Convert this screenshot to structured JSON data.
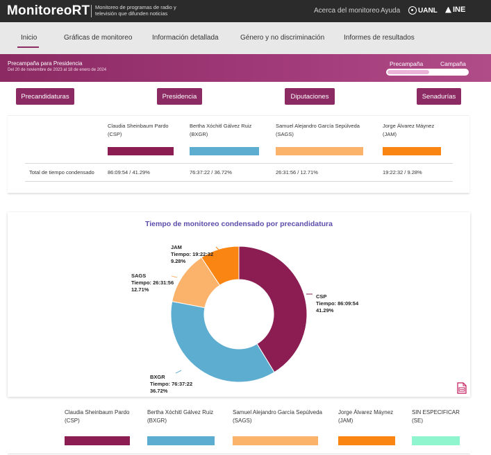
{
  "header": {
    "brand": "MonitoreoRT",
    "description": "Monitoreo de programas de radio y televisión que difunden noticias",
    "links": [
      "Acerca del monitoreo",
      "Ayuda"
    ],
    "logos": [
      "UANL",
      "INE"
    ]
  },
  "nav": {
    "tabs": [
      "Inicio",
      "Gráficas de monitoreo",
      "Información detallada",
      "Género y no discriminación",
      "Informes de resultados"
    ],
    "active": "Inicio"
  },
  "banner": {
    "title": "Precampaña para Presidencia",
    "dates": "Del 20 de noviembre de 2023 al 18 de enero de 2024",
    "toggle_left": "Precampaña",
    "toggle_right": "Campaña",
    "selected": "Precampaña"
  },
  "categories": [
    "Precandidaturas",
    "Presidencia",
    "Diputaciones",
    "Senadurías"
  ],
  "summary": {
    "row_label": "Total de tiempo condensado",
    "candidates": [
      {
        "name": "Claudia Sheinbaum Pardo",
        "party": "(CSP)",
        "value": "86:09:54 / 41.29%",
        "color": "#8b1d53"
      },
      {
        "name": "Bertha Xóchitl Gálvez Ruiz",
        "party": "(BXGR)",
        "value": "76:37:22 / 36.72%",
        "color": "#5dadd1"
      },
      {
        "name": "Samuel Alejandro García Sepúlveda",
        "party": "(SAGS)",
        "value": "26:31:56 / 12.71%",
        "color": "#fbb36b"
      },
      {
        "name": "Jorge Álvarez Máynez",
        "party": "(JAM)",
        "value": "19:22:32 / 9.28%",
        "color": "#fb8513"
      }
    ]
  },
  "chart_data": {
    "type": "pie",
    "title": "Tiempo de monitoreo condensado por precandidatura",
    "donut": true,
    "slices": [
      {
        "label": "CSP",
        "time_label": "Tiempo: 86:09:54",
        "pct_label": "41.29%",
        "value": 41.29,
        "color": "#8b1d53"
      },
      {
        "label": "BXGR",
        "time_label": "Tiempo: 76:37:22",
        "pct_label": "36.72%",
        "value": 36.72,
        "color": "#5dadd1"
      },
      {
        "label": "SAGS",
        "time_label": "Tiempo: 26:31:56",
        "pct_label": "12.71%",
        "value": 12.71,
        "color": "#fbb36b"
      },
      {
        "label": "JAM",
        "time_label": "Tiempo: 19:22:32",
        "pct_label": "9.28%",
        "value": 9.28,
        "color": "#fb8513"
      }
    ]
  },
  "legend": [
    {
      "name": "Claudia Sheinbaum Pardo",
      "party": "(CSP)",
      "color": "#8b1d53"
    },
    {
      "name": "Bertha Xóchitl Gálvez Ruiz",
      "party": "(BXGR)",
      "color": "#5dadd1"
    },
    {
      "name": "Samuel Alejandro García Sepúlveda",
      "party": "(SAGS)",
      "color": "#fbb36b"
    },
    {
      "name": "Jorge Álvarez Máynez",
      "party": "(JAM)",
      "color": "#fb8513"
    },
    {
      "name": "SIN ESPECIFICAR",
      "party": "(SE)",
      "color": "#8ff5cf"
    }
  ],
  "icons": {
    "export": "pdf-export-icon"
  }
}
